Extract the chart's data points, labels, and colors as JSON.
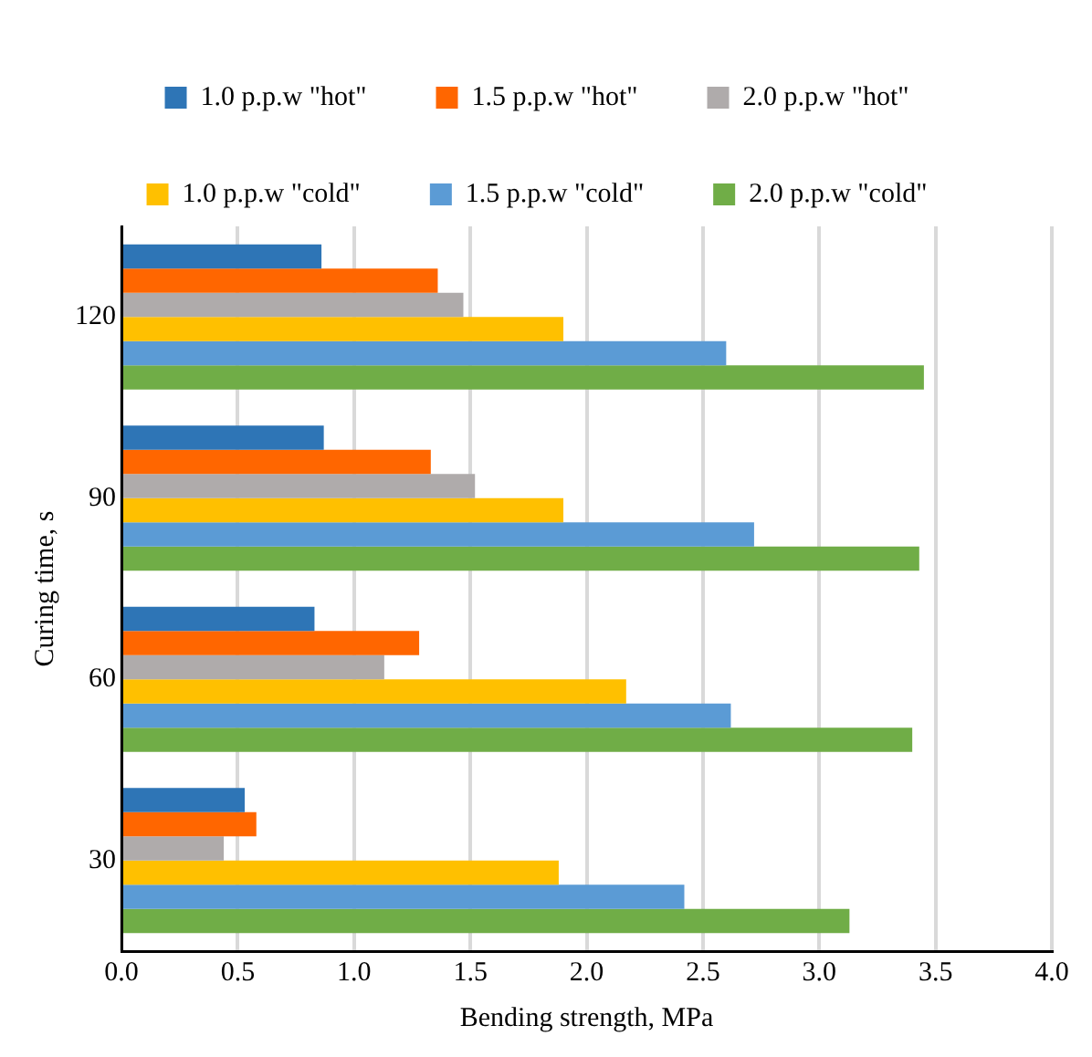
{
  "chart_data": {
    "type": "bar",
    "orientation": "horizontal",
    "xlabel": "Bending strength, MPa",
    "ylabel": "Curing time, s",
    "categories": [
      "120",
      "90",
      "60",
      "30"
    ],
    "series": [
      {
        "name": "1.0 p.p.w \"hot\"",
        "color": "#2e75b6",
        "values": [
          0.86,
          0.87,
          0.83,
          0.53
        ]
      },
      {
        "name": "1.5 p.p.w \"hot\"",
        "color": "#ff6600",
        "values": [
          1.36,
          1.33,
          1.28,
          0.58
        ]
      },
      {
        "name": "2.0 p.p.w \"hot\"",
        "color": "#afabab",
        "values": [
          1.47,
          1.52,
          1.13,
          0.44
        ]
      },
      {
        "name": "1.0 p.p.w \"cold\"",
        "color": "#ffc000",
        "values": [
          1.9,
          1.9,
          2.17,
          1.88
        ]
      },
      {
        "name": "1.5 p.p.w \"cold\"",
        "color": "#5b9bd5",
        "values": [
          2.6,
          2.72,
          2.62,
          2.42
        ]
      },
      {
        "name": "2.0 p.p.w \"cold\"",
        "color": "#70ad47",
        "values": [
          3.45,
          3.43,
          3.4,
          3.13
        ]
      }
    ],
    "xlim": [
      0,
      4
    ],
    "xticks": [
      {
        "value": 0,
        "label": "0.0"
      },
      {
        "value": 0.5,
        "label": "0.5"
      },
      {
        "value": 1,
        "label": "1.0"
      },
      {
        "value": 1.5,
        "label": "1.5"
      },
      {
        "value": 2,
        "label": "2.0"
      },
      {
        "value": 2.5,
        "label": "2.5"
      },
      {
        "value": 3,
        "label": "3.0"
      },
      {
        "value": 3.5,
        "label": "3.5"
      },
      {
        "value": 4,
        "label": "4.0"
      }
    ],
    "grid": "x",
    "legend": "top"
  }
}
